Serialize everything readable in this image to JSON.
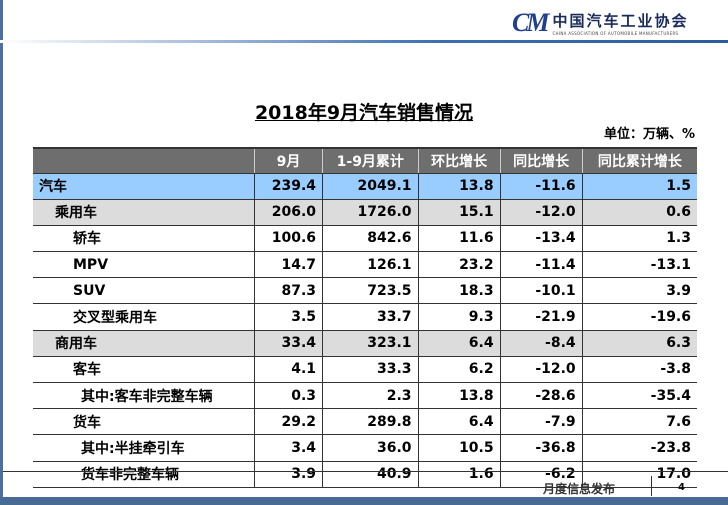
{
  "logo": {
    "mark": "CM",
    "cn": "中国汽车工业协会",
    "en": "CHINA ASSOCIATION OF AUTOMOBILE MANUFACTURERS"
  },
  "title": "2018年9月汽车销售情况",
  "unit": "单位：万辆、%",
  "headers": [
    "",
    "9月",
    "1-9月累计",
    "环比增长",
    "同比增长",
    "同比累计增长"
  ],
  "rows": [
    {
      "label": "汽车",
      "level": 0,
      "values": [
        "239.4",
        "2049.1",
        "13.8",
        "-11.6",
        "1.5"
      ]
    },
    {
      "label": "乘用车",
      "level": 1,
      "values": [
        "206.0",
        "1726.0",
        "15.1",
        "-12.0",
        "0.6"
      ]
    },
    {
      "label": "轿车",
      "level": 2,
      "values": [
        "100.6",
        "842.6",
        "11.6",
        "-13.4",
        "1.3"
      ]
    },
    {
      "label": "MPV",
      "level": 2,
      "values": [
        "14.7",
        "126.1",
        "23.2",
        "-11.4",
        "-13.1"
      ]
    },
    {
      "label": "SUV",
      "level": 2,
      "values": [
        "87.3",
        "723.5",
        "18.3",
        "-10.1",
        "3.9"
      ]
    },
    {
      "label": "交叉型乘用车",
      "level": 2,
      "values": [
        "3.5",
        "33.7",
        "9.3",
        "-21.9",
        "-19.6"
      ]
    },
    {
      "label": "商用车",
      "level": 1,
      "values": [
        "33.4",
        "323.1",
        "6.4",
        "-8.4",
        "6.3"
      ]
    },
    {
      "label": "客车",
      "level": 2,
      "values": [
        "4.1",
        "33.3",
        "6.2",
        "-12.0",
        "-3.8"
      ]
    },
    {
      "label": "其中:客车非完整车辆",
      "level": 3,
      "values": [
        "0.3",
        "2.3",
        "13.8",
        "-28.6",
        "-35.4"
      ]
    },
    {
      "label": "货车",
      "level": 2,
      "values": [
        "29.2",
        "289.8",
        "6.4",
        "-7.9",
        "7.6"
      ]
    },
    {
      "label": "其中:半挂牵引车",
      "level": 3,
      "values": [
        "3.4",
        "36.0",
        "10.5",
        "-36.8",
        "-23.8"
      ]
    },
    {
      "label": "货车非完整车辆",
      "level": 3,
      "values": [
        "3.9",
        "40.9",
        "1.6",
        "-6.2",
        "17.0"
      ]
    }
  ],
  "footer": {
    "label": "月度信息发布",
    "page": "4"
  }
}
